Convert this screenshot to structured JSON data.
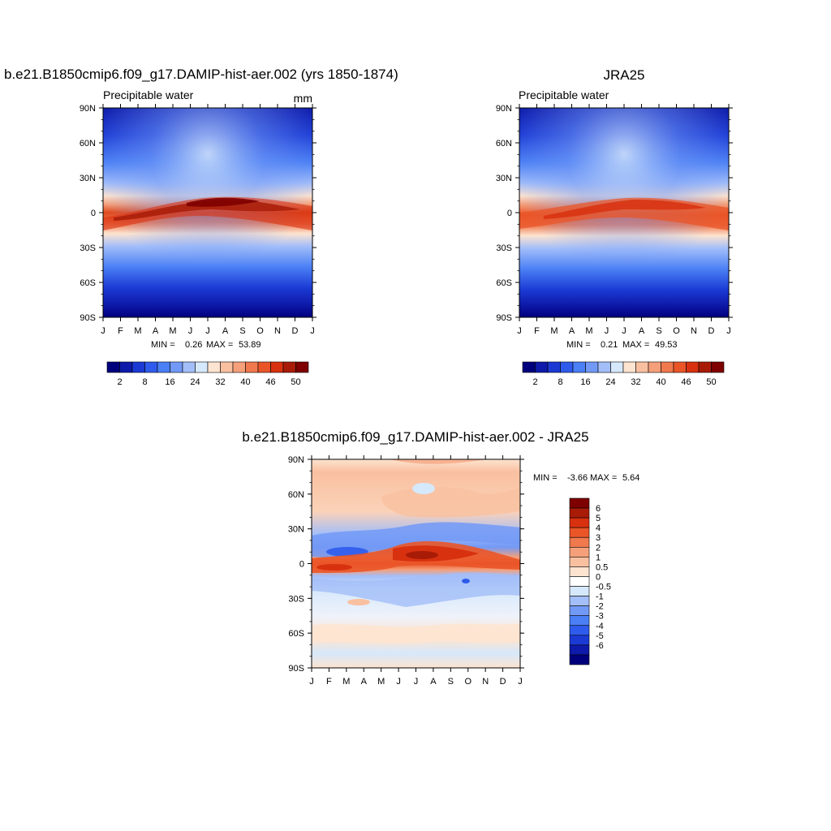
{
  "chart_data": [
    {
      "type": "heatmap",
      "title": "b.e21.B1850cmip6.f09_g17.DAMIP-hist-aer.002 (yrs 1850-1874)",
      "left_label": "Precipitable water",
      "units": "mm",
      "x_tick_labels": [
        "J",
        "F",
        "M",
        "A",
        "M",
        "J",
        "J",
        "A",
        "S",
        "O",
        "N",
        "D",
        "J"
      ],
      "y_tick_labels": [
        "90N",
        "60N",
        "30N",
        "0",
        "30S",
        "60S",
        "90S"
      ],
      "ylim": [
        -90,
        90
      ],
      "stats": {
        "min_label": "MIN =",
        "min": "0.26",
        "max_label": "MAX =",
        "max": "53.89"
      },
      "colorbar": {
        "orientation": "horizontal",
        "colors": [
          "#00007d",
          "#0e1aa9",
          "#1b3ad4",
          "#2e5bec",
          "#4a7ff5",
          "#7299f6",
          "#a3bef9",
          "#d6e8fb",
          "#fde4d0",
          "#f9c0a0",
          "#f5a07a",
          "#f0794e",
          "#ea5528",
          "#d8310f",
          "#a81c07",
          "#7e0000"
        ],
        "labels": [
          "2",
          "8",
          "16",
          "24",
          "32",
          "40",
          "46",
          "50"
        ]
      }
    },
    {
      "type": "heatmap",
      "title": "JRA25",
      "left_label": "Precipitable water",
      "units": "",
      "x_tick_labels": [
        "J",
        "F",
        "M",
        "A",
        "M",
        "J",
        "J",
        "A",
        "S",
        "O",
        "N",
        "D",
        "J"
      ],
      "y_tick_labels": [
        "90N",
        "60N",
        "30N",
        "0",
        "30S",
        "60S",
        "90S"
      ],
      "ylim": [
        -90,
        90
      ],
      "stats": {
        "min_label": "MIN =",
        "min": "0.21",
        "max_label": "MAX =",
        "max": "49.53"
      },
      "colorbar": {
        "orientation": "horizontal",
        "colors": [
          "#00007d",
          "#0e1aa9",
          "#1b3ad4",
          "#2e5bec",
          "#4a7ff5",
          "#7299f6",
          "#a3bef9",
          "#d6e8fb",
          "#fde4d0",
          "#f9c0a0",
          "#f5a07a",
          "#f0794e",
          "#ea5528",
          "#d8310f",
          "#a81c07",
          "#7e0000"
        ],
        "labels": [
          "2",
          "8",
          "16",
          "24",
          "32",
          "40",
          "46",
          "50"
        ]
      }
    },
    {
      "type": "heatmap",
      "title": "b.e21.B1850cmip6.f09_g17.DAMIP-hist-aer.002 - JRA25",
      "x_tick_labels": [
        "J",
        "F",
        "M",
        "A",
        "M",
        "J",
        "J",
        "A",
        "S",
        "O",
        "N",
        "D",
        "J"
      ],
      "y_tick_labels": [
        "90N",
        "60N",
        "30N",
        "0",
        "30S",
        "60S",
        "90S"
      ],
      "ylim": [
        -90,
        90
      ],
      "stats": {
        "min_label": "MIN =",
        "min": "-3.66",
        "max_label": "MAX =",
        "max": "5.64"
      },
      "colorbar": {
        "orientation": "vertical",
        "colors": [
          "#7e0000",
          "#a81c07",
          "#d8310f",
          "#ea5528",
          "#f0794e",
          "#f5a07a",
          "#f9c0a0",
          "#fde4d0",
          "#ffffff",
          "#d6e8fb",
          "#a3bef9",
          "#7299f6",
          "#4a7ff5",
          "#2e5bec",
          "#1b3ad4",
          "#0e1aa9",
          "#00007d"
        ],
        "labels": [
          "6",
          "5",
          "4",
          "3",
          "2",
          "1",
          "0.5",
          "0",
          "-0.5",
          "-1",
          "-2",
          "-3",
          "-4",
          "-5",
          "-6"
        ]
      }
    }
  ]
}
